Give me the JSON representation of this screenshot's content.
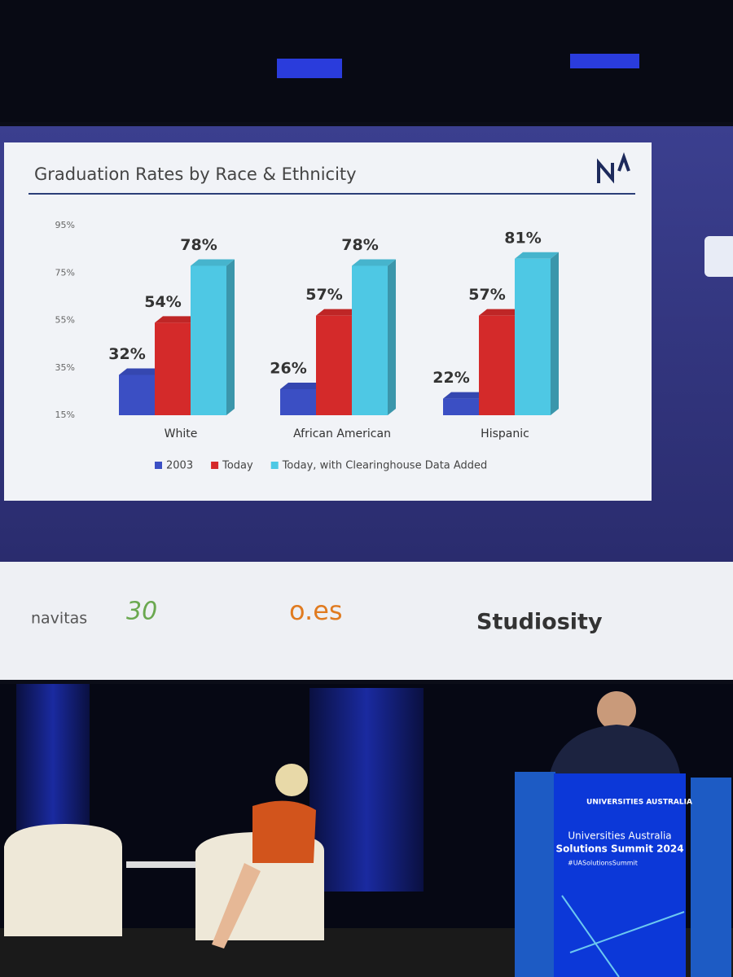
{
  "chart_data": {
    "type": "bar",
    "title": "Graduation Rates by Race & Ethnicity",
    "categories": [
      "White",
      "African American",
      "Hispanic"
    ],
    "series": [
      {
        "name": "2003",
        "color": "#3b4fc4",
        "values": [
          32,
          26,
          22
        ],
        "value_labels": [
          "32%",
          "26%",
          "22%"
        ]
      },
      {
        "name": "Today",
        "color": "#d42a2a",
        "values": [
          54,
          57,
          57
        ],
        "value_labels": [
          "54%",
          "57%",
          "57%"
        ]
      },
      {
        "name": "Today, with Clearinghouse Data Added",
        "color": "#4ec8e4",
        "values": [
          78,
          78,
          81
        ],
        "value_labels": [
          "78%",
          "78%",
          "81%"
        ]
      }
    ],
    "ylim": [
      15,
      95
    ],
    "yticks": [
      {
        "value": 15,
        "label": "15%"
      },
      {
        "value": 35,
        "label": "35%"
      },
      {
        "value": 55,
        "label": "55%"
      },
      {
        "value": 75,
        "label": "75%"
      },
      {
        "value": 95,
        "label": "95%"
      }
    ],
    "legend": "bottom"
  },
  "sponsors": [
    "navitas",
    "30",
    "o.es",
    "Studiosity"
  ],
  "podium": {
    "brand": "UNIVERSITIES AUSTRALIA",
    "event": "Universities Australia",
    "event2": "Solutions Summit 2024",
    "hashtag": "#UASolutionsSummit"
  }
}
